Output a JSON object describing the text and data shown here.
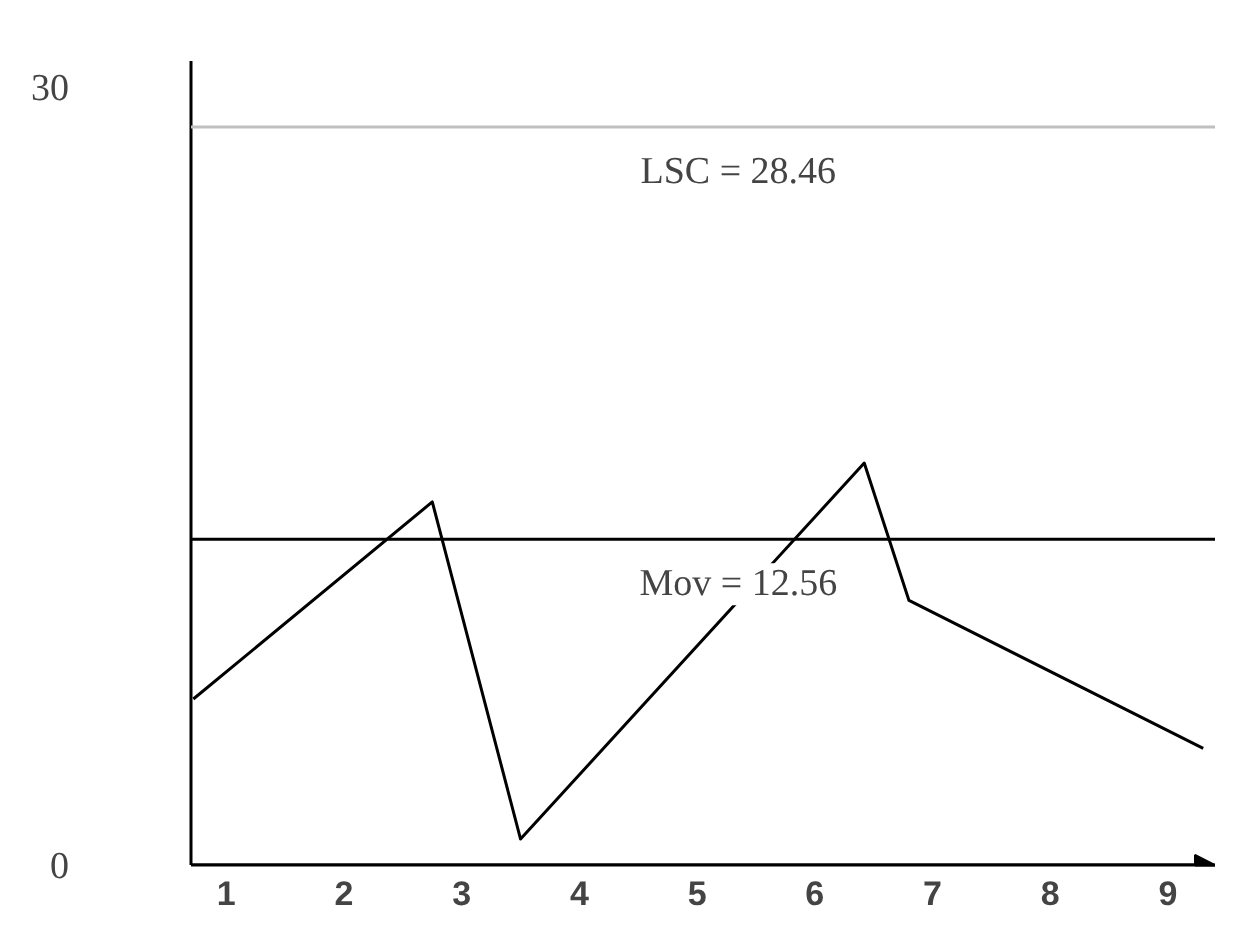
{
  "chart_data": {
    "type": "line",
    "x": [
      0.72,
      2.75,
      3.5,
      6.42,
      6.8,
      9.3
    ],
    "values": [
      6.4,
      14.0,
      1.0,
      15.5,
      10.2,
      4.5
    ],
    "color": "#000000",
    "xlim": [
      0.7,
      9.4
    ],
    "xticks": [
      1,
      2,
      3,
      4,
      5,
      6,
      7,
      8,
      9
    ],
    "ylim": [
      0,
      31
    ],
    "yticks": [
      0,
      30
    ],
    "ref_lines": [
      {
        "axis": "y",
        "value": 28.46,
        "label": "LSC = 28.46",
        "color": "#bfbfbf"
      },
      {
        "axis": "y",
        "value": 12.56,
        "label": "Mov = 12.56",
        "color": "#000000"
      }
    ],
    "grid": false,
    "marker": "none",
    "line_style": "solid"
  }
}
